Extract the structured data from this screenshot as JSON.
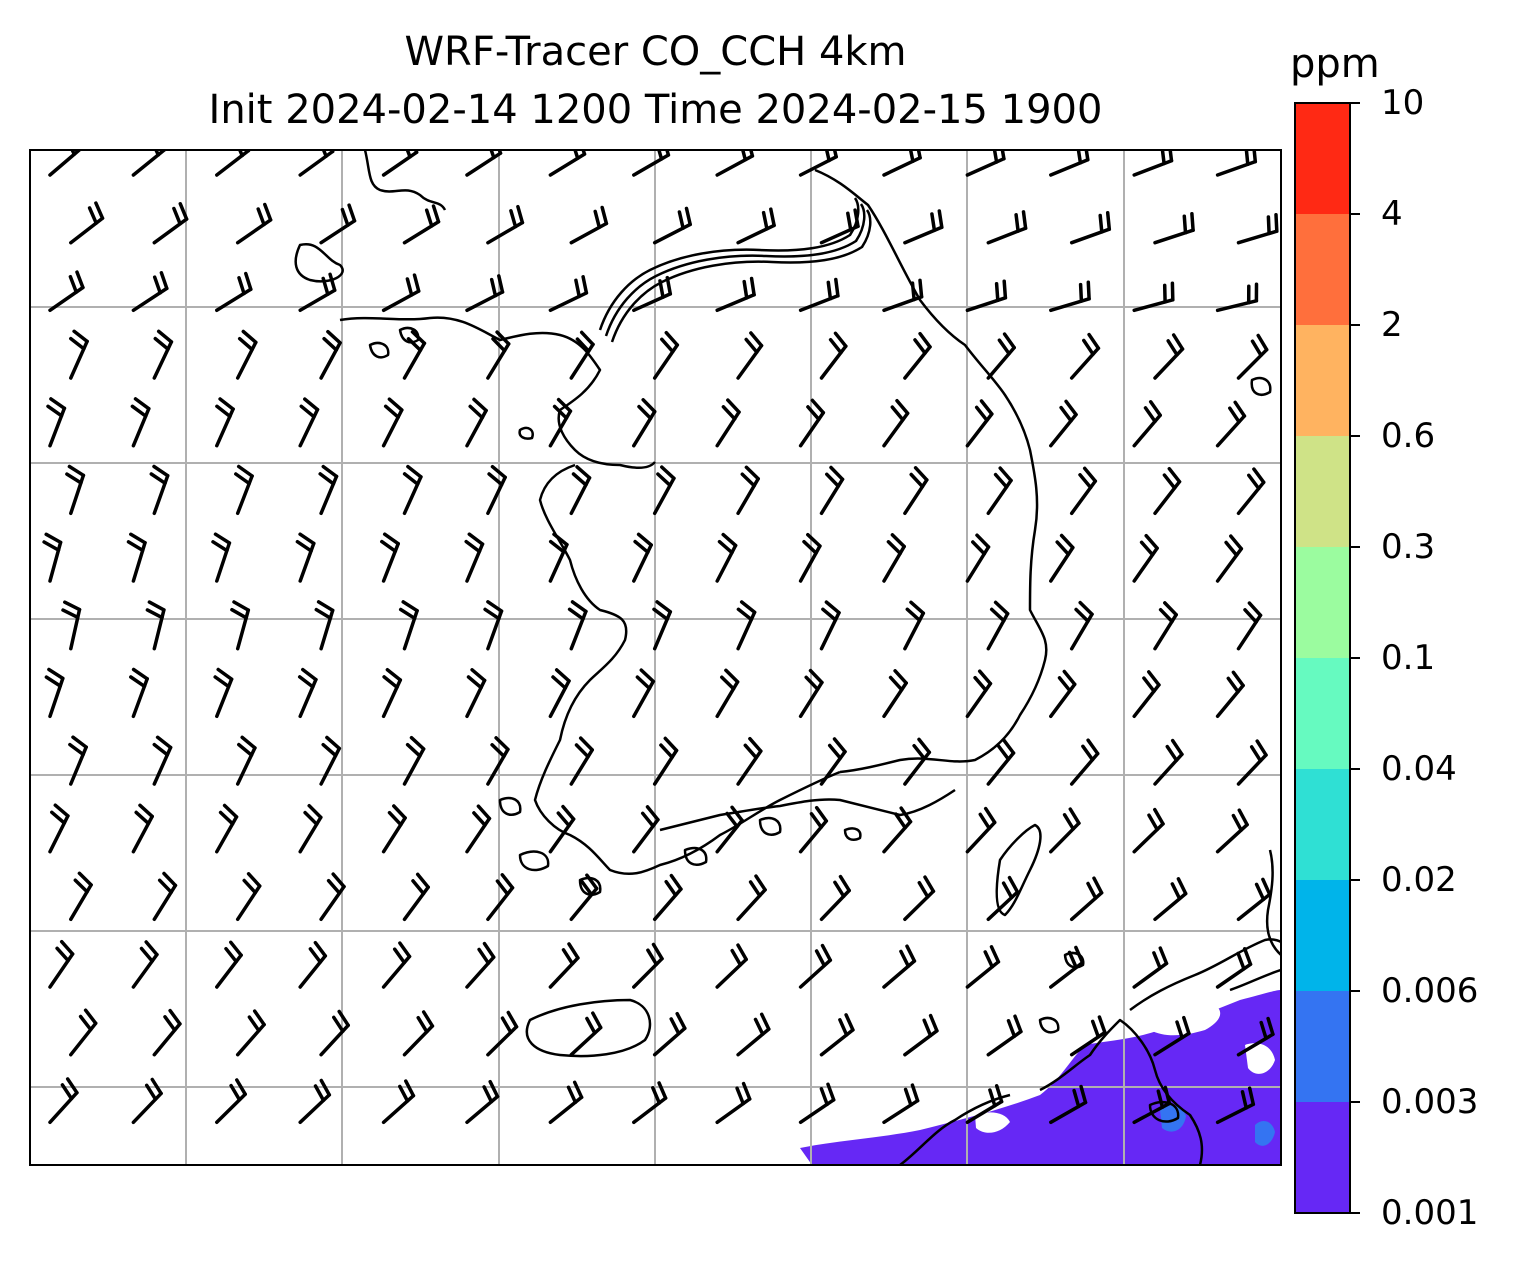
{
  "title_line1": "WRF-Tracer CO_CCH 4km",
  "title_line2": "Init 2024-02-14 1200 Time 2024-02-15 1900",
  "colorbar": {
    "unit": "ppm",
    "levels": [
      "0.001",
      "0.003",
      "0.006",
      "0.02",
      "0.04",
      "0.1",
      "0.3",
      "0.6",
      "2",
      "4",
      "10"
    ],
    "colors": [
      "#6628f5",
      "#3474f2",
      "#00b4ea",
      "#2fe0d4",
      "#66fac0",
      "#9bfc9f",
      "#cfe387",
      "#ffb360",
      "#ff6f3c",
      "#ff2914"
    ]
  },
  "map": {
    "type": "filled-contour-with-wind-barbs",
    "variable": "CO_CCH tracer concentration",
    "unit": "ppm",
    "gridlines": true,
    "field_color_present": "#6628f5",
    "field_color_secondary": "#3474f2",
    "coast_color": "#000000",
    "grid_color": "#b0b0b0",
    "wind_barb_direction": "from northwest",
    "wind_barb_color": "#000000"
  }
}
